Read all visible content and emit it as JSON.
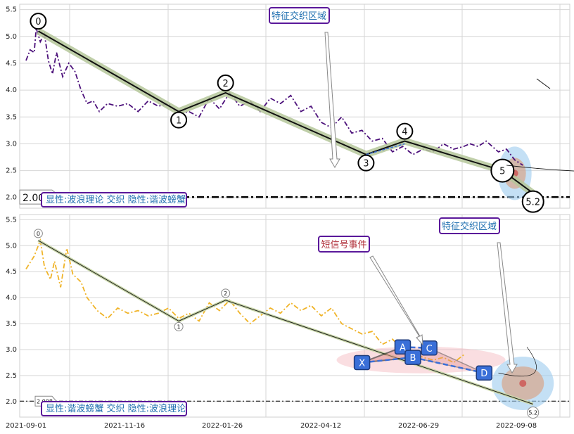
{
  "chart_data": [
    {
      "type": "line",
      "panel": "top",
      "ylim": [
        1.8,
        5.6
      ],
      "yticks": [
        "2.0",
        "2.5",
        "3.0",
        "3.5",
        "4.0",
        "4.5",
        "5.0",
        "5.5"
      ],
      "grid": true,
      "series": [
        {
          "style": "dash-dot",
          "color": "#4b0f7a",
          "x": [
            0,
            2,
            4,
            5,
            7,
            9,
            11,
            13,
            15,
            18,
            21,
            24,
            27,
            30,
            33,
            36,
            40,
            45,
            50,
            55,
            60,
            65,
            70,
            75,
            80,
            85,
            90,
            95,
            100,
            105,
            110,
            115,
            120,
            125,
            130,
            135,
            140,
            145,
            150,
            155,
            160,
            165,
            170,
            175,
            180,
            185,
            190,
            195,
            200,
            205,
            210,
            215,
            218
          ],
          "y": [
            4.55,
            4.75,
            4.7,
            5.15,
            4.9,
            5.05,
            4.55,
            4.3,
            4.7,
            4.25,
            4.5,
            4.35,
            4.0,
            3.75,
            3.8,
            3.6,
            3.75,
            3.7,
            3.75,
            3.6,
            3.8,
            3.7,
            3.75,
            3.55,
            3.6,
            3.5,
            3.85,
            3.65,
            3.95,
            3.7,
            3.8,
            3.6,
            3.85,
            3.75,
            3.9,
            3.6,
            3.7,
            3.4,
            3.3,
            3.5,
            3.2,
            3.25,
            3.05,
            3.1,
            2.85,
            2.95,
            2.8,
            2.9,
            2.85,
            3.0,
            2.9,
            2.95,
            3.0
          ]
        },
        {
          "style": "dash-dot",
          "color": "#4b0f7a",
          "x": [
            218,
            222,
            226,
            232,
            236,
            240,
            244
          ],
          "y": [
            3.0,
            2.95,
            3.05,
            2.85,
            2.9,
            2.7,
            2.6
          ]
        }
      ],
      "wave_points": [
        {
          "label": "0",
          "x": 6,
          "y": 5.1
        },
        {
          "label": "1",
          "x": 75,
          "y": 3.6
        },
        {
          "label": "2",
          "x": 98,
          "y": 3.95
        },
        {
          "label": "3",
          "x": 167,
          "y": 2.8
        },
        {
          "label": "4",
          "x": 186,
          "y": 3.05
        },
        {
          "label": "5",
          "x": 234,
          "y": 2.5
        },
        {
          "label": "5.2",
          "x": 249,
          "y": 2.08
        }
      ],
      "hline": {
        "y": 2.008,
        "label": "2.008"
      },
      "feature_label": "特征交织区域",
      "legend_text": "显性:波浪理论 交织 隐性:谐波螃蟹"
    },
    {
      "type": "line",
      "panel": "bottom",
      "ylim": [
        1.7,
        5.6
      ],
      "yticks": [
        "2.0",
        "2.5",
        "3.0",
        "3.5",
        "4.0",
        "4.5",
        "5.0",
        "5.5"
      ],
      "xticks": [
        "2021-09-01",
        "2021-11-16",
        "2022-01-26",
        "2022-04-12",
        "2022-06-29",
        "2022-09-08"
      ],
      "grid": true,
      "series": [
        {
          "style": "dash-dot",
          "color": "#f0b429",
          "x": [
            0,
            4,
            7,
            9,
            12,
            14,
            17,
            20,
            23,
            27,
            30,
            35,
            40,
            45,
            50,
            55,
            60,
            65,
            70,
            75,
            80,
            85,
            90,
            95,
            100,
            105,
            110,
            115,
            120,
            125,
            130,
            135,
            140,
            145,
            150,
            155,
            160,
            165,
            170,
            175,
            180,
            185,
            190,
            195,
            200,
            205,
            210,
            215
          ],
          "y": [
            4.55,
            4.8,
            5.1,
            4.6,
            4.35,
            4.7,
            4.2,
            4.95,
            4.45,
            4.3,
            4.0,
            3.75,
            3.6,
            3.8,
            3.7,
            3.75,
            3.65,
            3.7,
            3.8,
            3.6,
            3.7,
            3.55,
            3.9,
            3.75,
            3.95,
            3.7,
            3.5,
            3.65,
            3.8,
            3.7,
            3.9,
            3.75,
            3.85,
            3.65,
            3.8,
            3.5,
            3.4,
            3.3,
            3.35,
            3.1,
            3.2,
            3.0,
            2.95,
            2.85,
            2.8,
            2.85,
            2.75,
            2.9
          ]
        }
      ],
      "wave_points": [
        {
          "label": "0",
          "x": 6,
          "y": 5.1
        },
        {
          "label": "1",
          "x": 75,
          "y": 3.55
        },
        {
          "label": "2",
          "x": 98,
          "y": 3.95
        },
        {
          "label": "5.2",
          "x": 249,
          "y": 1.95
        }
      ],
      "harmonic_points": [
        {
          "label": "X",
          "x": 165,
          "y": 2.75
        },
        {
          "label": "A",
          "x": 185,
          "y": 3.05
        },
        {
          "label": "B",
          "x": 190,
          "y": 2.85
        },
        {
          "label": "C",
          "x": 198,
          "y": 3.03
        },
        {
          "label": "D",
          "x": 225,
          "y": 2.55
        }
      ],
      "hline": {
        "y": 2.008,
        "label": "2.008"
      },
      "short_signal_label": "短信号事件",
      "feature_label": "特征交织区域",
      "legend_text": "显性:谐波螃蟹 交织 隐性:波浪理论"
    }
  ]
}
